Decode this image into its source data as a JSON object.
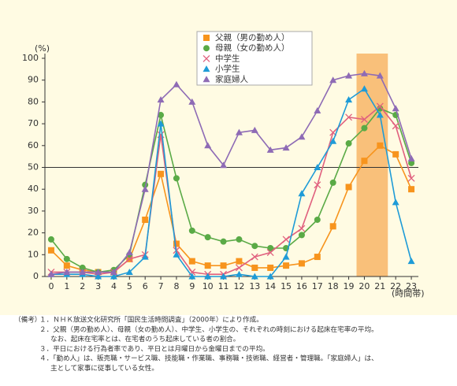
{
  "chart_data": {
    "type": "line",
    "y_unit_label": "(%)",
    "x_unit_label": "(時間帯)",
    "x": [
      0,
      1,
      2,
      3,
      4,
      5,
      6,
      7,
      8,
      9,
      10,
      11,
      12,
      13,
      14,
      15,
      16,
      17,
      18,
      19,
      20,
      21,
      22,
      23
    ],
    "xlim": [
      -0.4,
      23.45
    ],
    "xticks": [
      0,
      1,
      2,
      3,
      4,
      5,
      6,
      7,
      8,
      9,
      10,
      11,
      12,
      13,
      14,
      15,
      16,
      17,
      18,
      19,
      20,
      21,
      22,
      23
    ],
    "ylim": [
      0,
      100
    ],
    "yticks": [
      0,
      10,
      20,
      30,
      40,
      50,
      60,
      70,
      80,
      90,
      100
    ],
    "hline": 50,
    "highlight": [
      19.5,
      21.5
    ],
    "highlight_color": "#f9c07a",
    "legend": "top-center",
    "series": [
      {
        "name": "父親（男の勤め人）",
        "color": "#f7941d",
        "marker": "square",
        "values": [
          12,
          5,
          3,
          2,
          2,
          8,
          26,
          47,
          15,
          7,
          5,
          5,
          7,
          4,
          4,
          5,
          6,
          9,
          23,
          41,
          53,
          60,
          56,
          40
        ]
      },
      {
        "name": "母親（女の勤め人）",
        "color": "#5aaa46",
        "marker": "circle",
        "values": [
          17,
          8,
          4,
          2,
          3,
          10,
          42,
          74,
          45,
          21,
          18,
          16,
          17,
          14,
          13,
          13,
          19,
          26,
          43,
          61,
          68,
          77,
          74,
          52
        ]
      },
      {
        "name": "中学生",
        "color": "#e0607e",
        "marker": "x",
        "values": [
          2,
          2,
          2,
          1,
          2,
          8,
          10,
          65,
          12,
          2,
          1,
          1,
          4,
          9,
          11,
          17,
          22,
          42,
          66,
          73,
          72,
          78,
          69,
          45
        ]
      },
      {
        "name": "小学生",
        "color": "#1e9bd7",
        "marker": "triangle",
        "values": [
          1,
          1,
          1,
          0,
          0,
          2,
          9,
          70,
          10,
          0,
          0,
          0,
          1,
          0,
          0,
          9,
          38,
          50,
          62,
          81,
          86,
          74,
          34,
          7
        ]
      },
      {
        "name": "家庭婦人",
        "color": "#8e6bb5",
        "marker": "triangle",
        "values": [
          1,
          2,
          2,
          2,
          2,
          11,
          40,
          81,
          88,
          80,
          60,
          51,
          66,
          67,
          58,
          59,
          64,
          76,
          90,
          92,
          93,
          92,
          77,
          54
        ]
      }
    ]
  },
  "notes_label": "（備考）",
  "notes": [
    "１．ＮＨＫ放送文化研究所「国民生活時間調査」（2000年）により作成。",
    "２．父親（男の勤め人）、母親（女の勤め人）、中学生、小学生の、それぞれの時刻における起床在宅率の平均。",
    "なお、起床在宅率とは、在宅者のうち起床している者の割合。",
    "３．平日における行為者率であり、平日とは月曜日から金曜日までの平均。",
    "４．「勤め人」は、販売職・サービス職、技能職・作業職、事務職・技術職、経営者・管理職。「家庭婦人」は、",
    "主として家事に従事している女性。"
  ]
}
